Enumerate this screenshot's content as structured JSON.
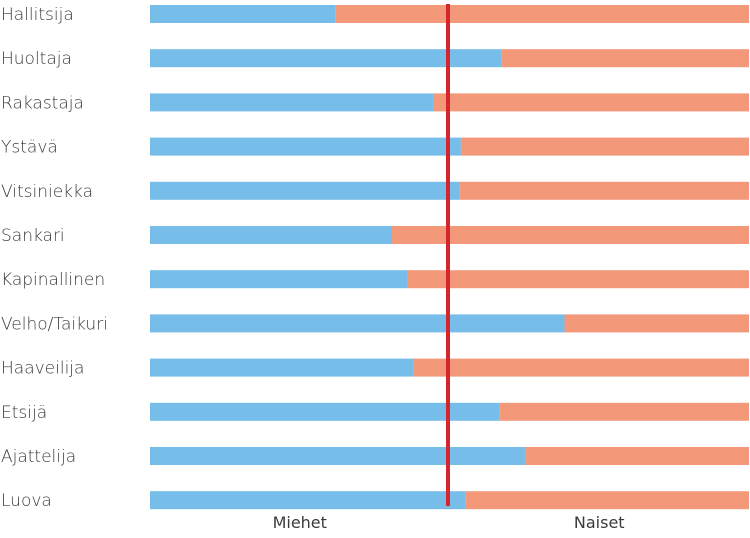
{
  "chart_data": {
    "type": "bar",
    "stacked": true,
    "orientation": "horizontal",
    "categories": [
      "Hallitsija",
      "Huoltaja",
      "Rakastaja",
      "Ystävä",
      "Vitsiniekka",
      "Sankari",
      "Kapinallinen",
      "Velho/Taikuri",
      "Haaveilija",
      "Etsijä",
      "Ajattelija",
      "Luova"
    ],
    "series": [
      {
        "values": [
          31,
          58.7,
          47.4,
          51.9,
          51.7,
          40.4,
          43,
          69.2,
          44,
          58.4,
          62.6,
          52.7
        ],
        "color": "#77bde9"
      },
      {
        "values": [
          69,
          41.3,
          52.6,
          48.1,
          48.3,
          59.6,
          57,
          30.8,
          56,
          41.6,
          37.4,
          47.3
        ],
        "color": "#f4987a"
      }
    ],
    "reference_line": {
      "value": 50,
      "color": "#d5262e"
    },
    "xlim": [
      0,
      100
    ],
    "x_labels": {
      "left": "Miehet",
      "right": "Naiset"
    },
    "grid": false,
    "legend": "none"
  }
}
